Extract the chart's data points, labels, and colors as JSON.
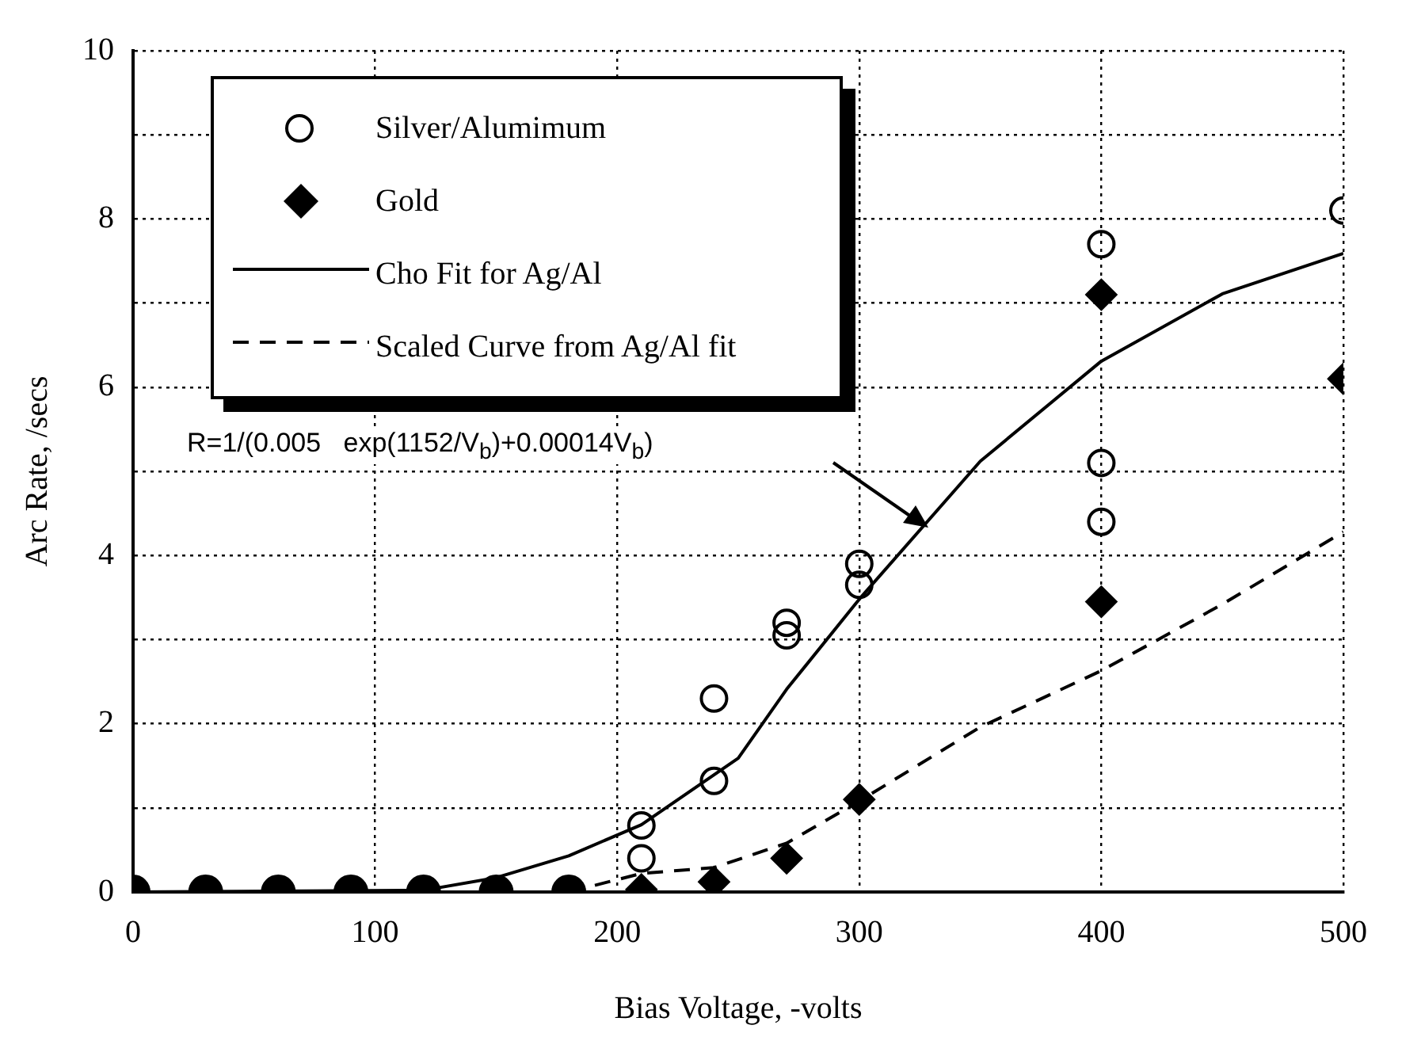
{
  "chart_data": {
    "type": "scatter",
    "xlabel": "Bias Voltage, -volts",
    "ylabel": "Arc Rate, /secs",
    "xlim": [
      0,
      500
    ],
    "xticks": [
      0,
      100,
      200,
      300,
      400,
      500
    ],
    "ylim": [
      0,
      10
    ],
    "yticks": [
      0,
      {
        "value": 1,
        "label": null
      },
      2,
      {
        "value": 3,
        "label": null
      },
      4,
      {
        "value": 5,
        "label": null
      },
      6,
      {
        "value": 7,
        "label": null
      },
      8,
      {
        "value": 9,
        "label": null
      },
      10
    ],
    "grid": true,
    "legend": "top left",
    "series": [
      {
        "name": "Silver/Alumimum",
        "type": "scatter",
        "marker": "circle",
        "color": "#000000",
        "x": [
          210,
          210,
          240,
          240,
          270,
          270,
          300,
          300,
          400,
          400,
          400,
          500
        ],
        "values": [
          0.79,
          0.4,
          2.3,
          1.32,
          3.2,
          3.05,
          3.9,
          3.65,
          7.7,
          5.1,
          4.4,
          8.1
        ]
      },
      {
        "name": "Gold",
        "type": "scatter",
        "marker": "diamond",
        "color": "#000000",
        "x": [
          210,
          240,
          270,
          300,
          400,
          400,
          500
        ],
        "values": [
          0.03,
          0.12,
          0.4,
          1.1,
          7.1,
          3.45,
          6.1
        ]
      },
      {
        "type": "scatter",
        "marker": "circle",
        "color": "#000000",
        "x": [
          0,
          30,
          60,
          90,
          120,
          150,
          180
        ],
        "values": [
          0,
          0,
          0,
          0,
          0,
          0,
          0
        ]
      },
      {
        "name": "Cho Fit for Ag/Al",
        "type": "line",
        "marker": "none",
        "line_style": "solid",
        "color": "#000000",
        "x": [
          0,
          120,
          150,
          180,
          210,
          250,
          270,
          300,
          350,
          400,
          450,
          500
        ],
        "values": [
          0,
          0.02,
          0.17,
          0.43,
          0.8,
          1.59,
          2.41,
          3.48,
          5.12,
          6.31,
          7.11,
          7.59
        ]
      },
      {
        "name": "Scaled Curve from Ag/Al fit",
        "type": "line",
        "marker": "none",
        "line_style": "dashed",
        "color": "#000000",
        "x": [
          180,
          210,
          240,
          270,
          300,
          350,
          400,
          450,
          500
        ],
        "values": [
          0,
          0.22,
          0.29,
          0.58,
          1.08,
          1.96,
          2.63,
          3.42,
          4.28
        ]
      }
    ],
    "annotations": [
      "R=1/(0.005   exp(1152/V$_{b}$)+0.00014V$_{b}$)"
    ]
  }
}
